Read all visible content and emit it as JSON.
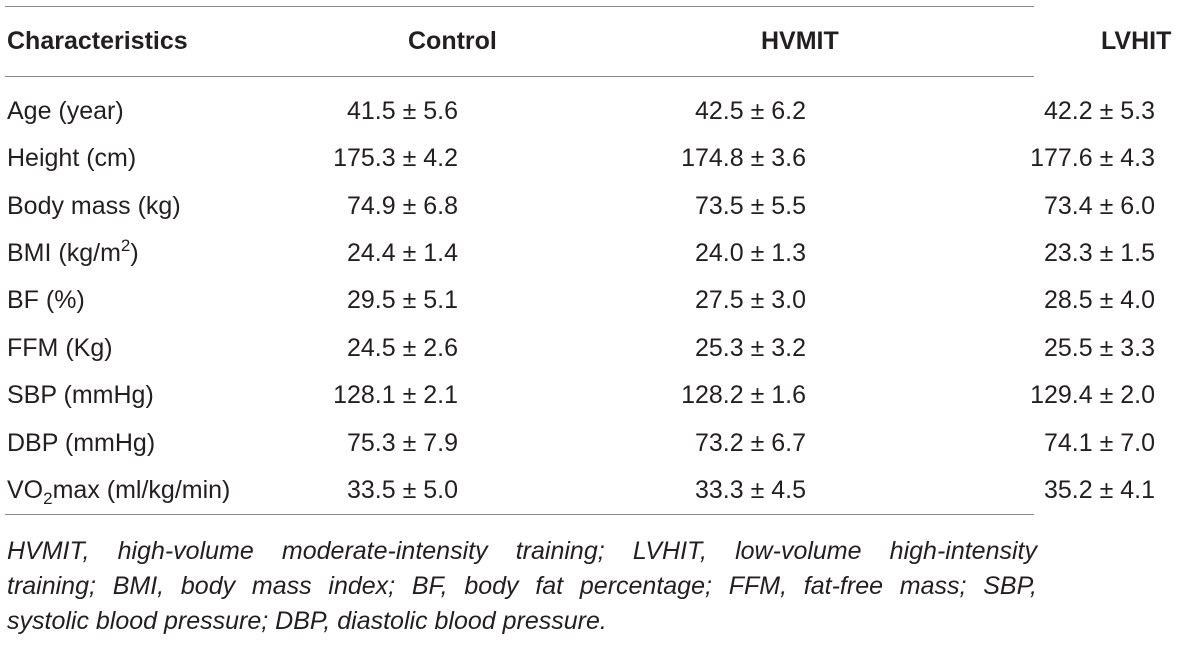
{
  "table": {
    "headers": [
      "Characteristics",
      "Control",
      "HVMIT",
      "LVHIT"
    ],
    "rows": [
      {
        "label": "Age (year)",
        "values": [
          "41.5 ± 5.6",
          "42.5 ± 6.2",
          "42.2 ± 5.3"
        ]
      },
      {
        "label": "Height (cm)",
        "values": [
          "175.3 ± 4.2",
          "174.8 ± 3.6",
          "177.6 ± 4.3"
        ]
      },
      {
        "label": "Body mass (kg)",
        "values": [
          "74.9 ± 6.8",
          "73.5 ± 5.5",
          "73.4 ± 6.0"
        ]
      },
      {
        "label_pre": "BMI (kg/m",
        "label_sup": "2",
        "label_post": ")",
        "values": [
          "24.4 ± 1.4",
          "24.0 ± 1.3",
          "23.3 ± 1.5"
        ]
      },
      {
        "label": "BF (%)",
        "values": [
          "29.5 ± 5.1",
          "27.5 ± 3.0",
          "28.5 ± 4.0"
        ]
      },
      {
        "label": "FFM (Kg)",
        "values": [
          "24.5 ± 2.6",
          "25.3 ± 3.2",
          "25.5 ± 3.3"
        ]
      },
      {
        "label": "SBP (mmHg)",
        "values": [
          "128.1 ± 2.1",
          "128.2 ± 1.6",
          "129.4 ± 2.0"
        ]
      },
      {
        "label": "DBP (mmHg)",
        "values": [
          "75.3 ± 7.9",
          "73.2 ± 6.7",
          "74.1 ± 7.0"
        ]
      },
      {
        "label_pre": "VO",
        "label_sub": "2",
        "label_post": "max (ml/kg/min)",
        "values": [
          "33.5 ± 5.0",
          "33.3 ± 4.5",
          "35.2 ± 4.1"
        ]
      }
    ]
  },
  "footnote": {
    "line1": "HVMIT, high-volume moderate-intensity training; LVHIT, low-volume high-intensity",
    "line2": "training; BMI, body mass index; BF, body fat percentage; FFM, fat-free mass; SBP,",
    "line3": "systolic blood pressure; DBP, diastolic blood pressure."
  }
}
